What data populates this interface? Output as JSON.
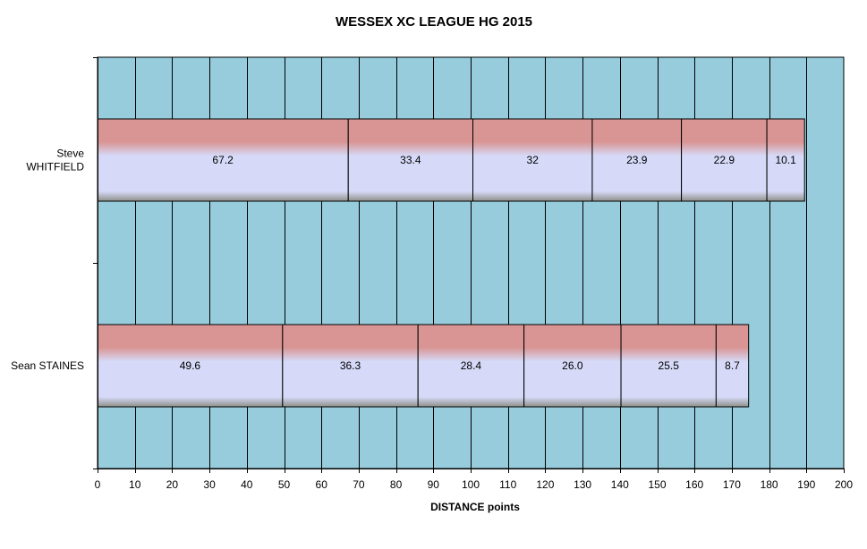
{
  "chart_data": {
    "type": "bar",
    "orientation": "horizontal",
    "stacked": true,
    "title": "WESSEX XC LEAGUE HG 2015",
    "xlabel": "DISTANCE  points",
    "ylabel": "",
    "xlim": [
      0,
      200
    ],
    "xticks": [
      0,
      10,
      20,
      30,
      40,
      50,
      60,
      70,
      80,
      90,
      100,
      110,
      120,
      130,
      140,
      150,
      160,
      170,
      180,
      190,
      200
    ],
    "grid": true,
    "legend": "none",
    "colors": {
      "plot_bg": "#96CCDC",
      "bar_top": "#D99594",
      "bar_mid": "#D6DAF8",
      "bar_bottom": "#8E9088"
    },
    "categories": [
      {
        "lines": [
          "Steve",
          "WHITFIELD"
        ]
      },
      {
        "lines": [
          "Sean STAINES"
        ]
      }
    ],
    "segments": [
      {
        "values": [
          67.2,
          33.4,
          32,
          23.9,
          22.9,
          10.1
        ],
        "labels": [
          "67.2",
          "33.4",
          "32",
          "23.9",
          "22.9",
          "10.1"
        ]
      },
      {
        "values": [
          49.6,
          36.3,
          28.4,
          26.0,
          25.5,
          8.7
        ],
        "labels": [
          "49.6",
          "36.3",
          "28.4",
          "26.0",
          "25.5",
          "8.7"
        ]
      }
    ]
  }
}
